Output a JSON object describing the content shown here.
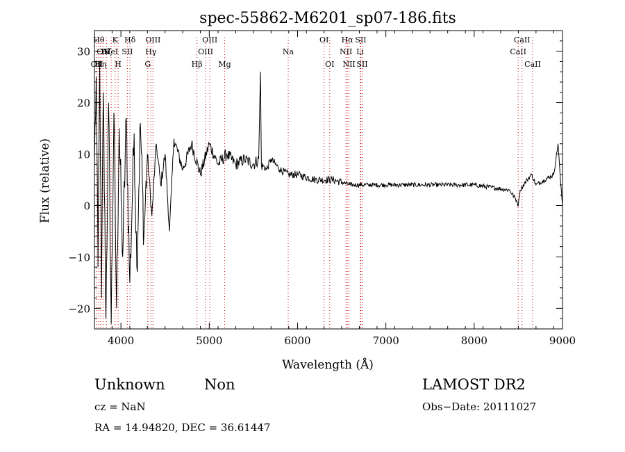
{
  "chart_data": {
    "type": "line",
    "title": "spec-55862-M6201_sp07-186.fits",
    "xlabel": "Wavelength (Å)",
    "ylabel": "Flux (relative)",
    "xlim": [
      3700,
      9000
    ],
    "ylim": [
      -24,
      34
    ],
    "x_ticks": [
      4000,
      5000,
      6000,
      7000,
      8000,
      9000
    ],
    "y_ticks": [
      -20,
      -10,
      0,
      10,
      20,
      30
    ],
    "y_tick_labels": [
      "−20",
      "−10",
      "0",
      "10",
      "20",
      "30"
    ],
    "grid": false,
    "line_color": "#000000",
    "marker_color": "#cc0000",
    "anchor_points": [
      [
        3700,
        8
      ],
      [
        3720,
        25
      ],
      [
        3740,
        -12
      ],
      [
        3760,
        28
      ],
      [
        3780,
        -18
      ],
      [
        3800,
        22
      ],
      [
        3830,
        -22
      ],
      [
        3860,
        20
      ],
      [
        3890,
        -23
      ],
      [
        3920,
        18
      ],
      [
        3950,
        -20
      ],
      [
        3980,
        15
      ],
      [
        4020,
        -10
      ],
      [
        4060,
        17
      ],
      [
        4100,
        -15
      ],
      [
        4150,
        14
      ],
      [
        4180,
        -12
      ],
      [
        4220,
        16
      ],
      [
        4260,
        -6
      ],
      [
        4300,
        10
      ],
      [
        4350,
        -2
      ],
      [
        4400,
        12
      ],
      [
        4450,
        4
      ],
      [
        4500,
        10
      ],
      [
        4550,
        -5
      ],
      [
        4600,
        13
      ],
      [
        4700,
        7
      ],
      [
        4800,
        12
      ],
      [
        4900,
        6
      ],
      [
        5000,
        12
      ],
      [
        5100,
        8
      ],
      [
        5200,
        10
      ],
      [
        5300,
        8
      ],
      [
        5400,
        9
      ],
      [
        5500,
        8
      ],
      [
        5560,
        9
      ],
      [
        5580,
        26
      ],
      [
        5590,
        8
      ],
      [
        5650,
        7
      ],
      [
        5700,
        9
      ],
      [
        5800,
        7
      ],
      [
        5900,
        6
      ],
      [
        6000,
        6
      ],
      [
        6200,
        5
      ],
      [
        6400,
        5
      ],
      [
        6600,
        4
      ],
      [
        6800,
        4
      ],
      [
        7000,
        4
      ],
      [
        7200,
        4
      ],
      [
        7400,
        4
      ],
      [
        7600,
        4
      ],
      [
        7800,
        4
      ],
      [
        8000,
        4
      ],
      [
        8200,
        3.5
      ],
      [
        8400,
        3
      ],
      [
        8480,
        1
      ],
      [
        8500,
        0
      ],
      [
        8520,
        3
      ],
      [
        8600,
        5
      ],
      [
        8650,
        6
      ],
      [
        8700,
        4
      ],
      [
        8800,
        5
      ],
      [
        8900,
        6
      ],
      [
        8950,
        12
      ],
      [
        8980,
        4
      ],
      [
        9000,
        0
      ]
    ],
    "lines": [
      {
        "name": "OII",
        "wl": 3727,
        "row": 2
      },
      {
        "name": "Hθ",
        "wl": 3750,
        "row": 0
      },
      {
        "name": "Hη",
        "wl": 3771,
        "row": 2
      },
      {
        "name": "CN",
        "wl": 3797,
        "row": 1
      },
      {
        "name": "Hζ",
        "wl": 3835,
        "row": 1
      },
      {
        "name": "HeI",
        "wl": 3889,
        "row": 1
      },
      {
        "name": "K",
        "wl": 3934,
        "row": 0
      },
      {
        "name": "H",
        "wl": 3968,
        "row": 2
      },
      {
        "name": "SII",
        "wl": 4072,
        "row": 1
      },
      {
        "name": "Hδ",
        "wl": 4102,
        "row": 0
      },
      {
        "name": "G",
        "wl": 4304,
        "row": 2
      },
      {
        "name": "Hγ",
        "wl": 4340,
        "row": 1
      },
      {
        "name": "OIII",
        "wl": 4363,
        "row": 0
      },
      {
        "name": "Hβ",
        "wl": 4861,
        "row": 2
      },
      {
        "name": "OIII",
        "wl": 4959,
        "row": 1
      },
      {
        "name": "OIII",
        "wl": 5007,
        "row": 0
      },
      {
        "name": "Mg",
        "wl": 5175,
        "row": 2
      },
      {
        "name": "Na",
        "wl": 5894,
        "row": 1
      },
      {
        "name": "OI",
        "wl": 6300,
        "row": 0
      },
      {
        "name": "OI",
        "wl": 6364,
        "row": 2
      },
      {
        "name": "NII",
        "wl": 6548,
        "row": 1
      },
      {
        "name": "Hα",
        "wl": 6563,
        "row": 0
      },
      {
        "name": "NII",
        "wl": 6583,
        "row": 2
      },
      {
        "name": "Li",
        "wl": 6708,
        "row": 1
      },
      {
        "name": "SII",
        "wl": 6716,
        "row": 0
      },
      {
        "name": "SII",
        "wl": 6731,
        "row": 2
      },
      {
        "name": "CaII",
        "wl": 8498,
        "row": 1
      },
      {
        "name": "CaII",
        "wl": 8542,
        "row": 0
      },
      {
        "name": "CaII",
        "wl": 8662,
        "row": 2
      }
    ]
  },
  "info": {
    "class": "Unknown",
    "subclass": "Non",
    "survey": "LAMOST DR2",
    "cz": "cz = NaN",
    "obs_date": "Obs−Date: 20111027",
    "coords": "RA =  14.94820, DEC =  36.61447"
  }
}
